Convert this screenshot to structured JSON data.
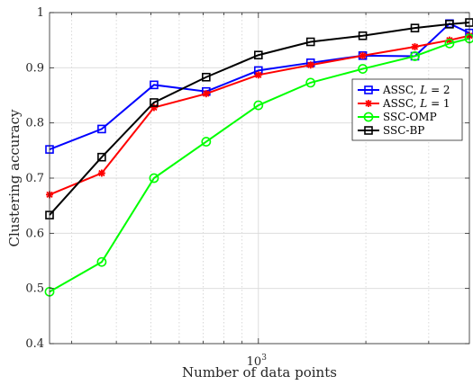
{
  "chart_data": {
    "type": "line",
    "xscale": "log",
    "xlabel": "Number of data points",
    "ylabel": "Clustering accuracy",
    "xlim": [
      260,
      3900
    ],
    "ylim": [
      0.4,
      1.0
    ],
    "x_major_ticks": [
      {
        "value": 1000,
        "base": "10",
        "exp": "3"
      }
    ],
    "y_ticks": [
      {
        "value": 0.4,
        "label": "0.4"
      },
      {
        "value": 0.5,
        "label": "0.5"
      },
      {
        "value": 0.6,
        "label": "0.6"
      },
      {
        "value": 0.7,
        "label": "0.7"
      },
      {
        "value": 0.8,
        "label": "0.8"
      },
      {
        "value": 0.9,
        "label": "0.9"
      },
      {
        "value": 1.0,
        "label": "1"
      }
    ],
    "grid": true,
    "legend_position": "right",
    "x": [
      260,
      364,
      510,
      714,
      1000,
      1400,
      1960,
      2744,
      3430,
      3900
    ],
    "series": [
      {
        "name_parts": [
          "ASSC, ",
          "L",
          " = 2"
        ],
        "color": "#0000ff",
        "marker": "square",
        "values": [
          0.752,
          0.789,
          0.869,
          0.857,
          0.895,
          0.909,
          0.922,
          0.921,
          0.98,
          0.963
        ]
      },
      {
        "name_parts": [
          "ASSC, ",
          "L",
          " = 1"
        ],
        "color": "#ff0000",
        "marker": "star",
        "values": [
          0.67,
          0.709,
          0.828,
          0.853,
          0.887,
          0.905,
          0.922,
          0.938,
          0.95,
          0.958
        ]
      },
      {
        "name_parts": [
          "SSC-OMP"
        ],
        "color": "#00ff00",
        "marker": "circle",
        "values": [
          0.494,
          0.548,
          0.7,
          0.766,
          0.832,
          0.873,
          0.898,
          0.921,
          0.944,
          0.953
        ]
      },
      {
        "name_parts": [
          "SSC-BP"
        ],
        "color": "#000000",
        "marker": "square",
        "values": [
          0.633,
          0.738,
          0.837,
          0.883,
          0.923,
          0.947,
          0.958,
          0.972,
          0.979,
          0.982
        ]
      }
    ]
  }
}
